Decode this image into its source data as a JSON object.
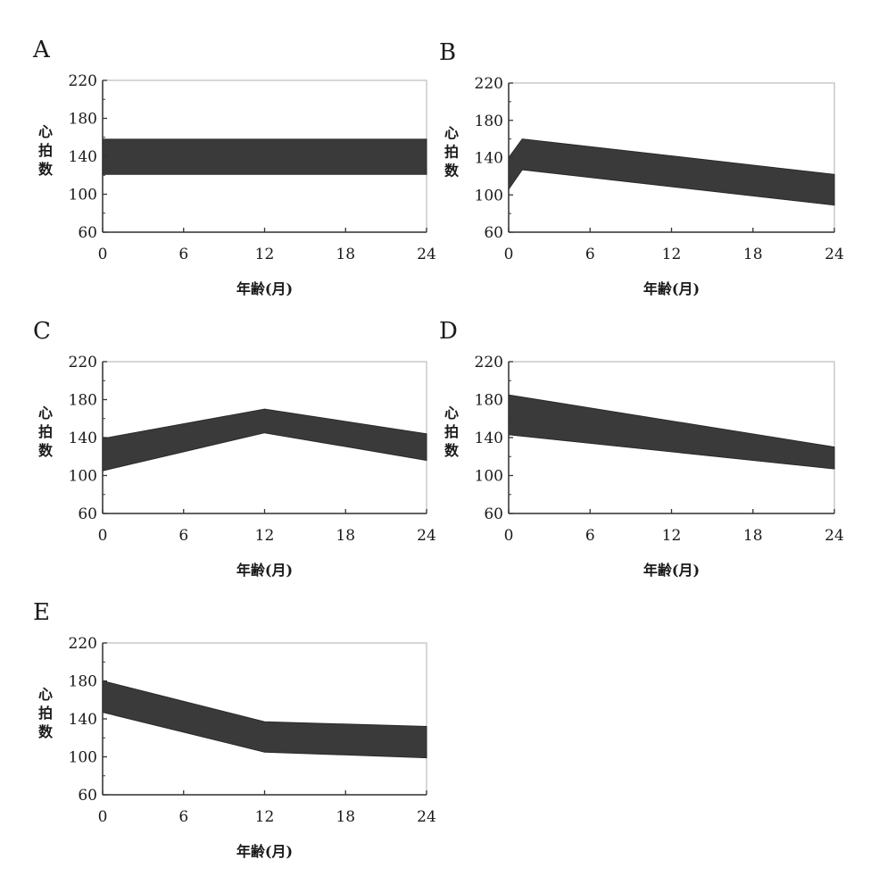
{
  "chart_data": [
    {
      "panel": "A",
      "type": "area",
      "xlabel": "年齢(月)",
      "ylabel": "心拍数",
      "xlim": [
        0,
        24
      ],
      "ylim": [
        60,
        220
      ],
      "xticks": [
        0,
        6,
        12,
        18,
        24
      ],
      "yticks": [
        60,
        100,
        140,
        180,
        220
      ],
      "x": [
        0,
        24
      ],
      "upper": [
        158,
        158
      ],
      "lower": [
        121,
        121
      ]
    },
    {
      "panel": "B",
      "type": "area",
      "xlabel": "年齢(月)",
      "ylabel": "心拍数",
      "xlim": [
        0,
        24
      ],
      "ylim": [
        60,
        220
      ],
      "xticks": [
        0,
        6,
        12,
        18,
        24
      ],
      "yticks": [
        60,
        100,
        140,
        180,
        220
      ],
      "x": [
        0,
        1,
        24
      ],
      "upper": [
        140,
        160,
        122
      ],
      "lower": [
        106,
        127,
        89
      ]
    },
    {
      "panel": "C",
      "type": "area",
      "xlabel": "年齢(月)",
      "ylabel": "心拍数",
      "xlim": [
        0,
        24
      ],
      "ylim": [
        60,
        220
      ],
      "xticks": [
        0,
        6,
        12,
        18,
        24
      ],
      "yticks": [
        60,
        100,
        140,
        180,
        220
      ],
      "x": [
        0,
        12,
        24
      ],
      "upper": [
        139,
        170,
        144
      ],
      "lower": [
        105,
        145,
        116
      ]
    },
    {
      "panel": "D",
      "type": "area",
      "xlabel": "年齢(月)",
      "ylabel": "心拍数",
      "xlim": [
        0,
        24
      ],
      "ylim": [
        60,
        220
      ],
      "xticks": [
        0,
        6,
        12,
        18,
        24
      ],
      "yticks": [
        60,
        100,
        140,
        180,
        220
      ],
      "x": [
        0,
        24
      ],
      "upper": [
        185,
        130
      ],
      "lower": [
        143,
        107
      ]
    },
    {
      "panel": "E",
      "type": "area",
      "xlabel": "年齢(月)",
      "ylabel": "心拍数",
      "xlim": [
        0,
        24
      ],
      "ylim": [
        60,
        220
      ],
      "xticks": [
        0,
        6,
        12,
        18,
        24
      ],
      "yticks": [
        60,
        100,
        140,
        180,
        220
      ],
      "x": [
        0,
        12,
        24
      ],
      "upper": [
        180,
        137,
        132
      ],
      "lower": [
        147,
        105,
        99
      ]
    }
  ],
  "colors": {
    "band": "#3a3a3a",
    "frame": "#333333",
    "grid_frame": "#bcbcbc",
    "text": "#1a1a1a"
  }
}
